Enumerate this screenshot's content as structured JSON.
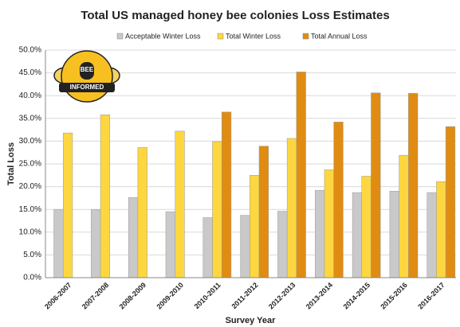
{
  "chart_data": {
    "type": "bar",
    "title": "Total US managed honey bee colonies Loss Estimates",
    "x_label": "Survey Year",
    "y_label": "Total Loss",
    "logo": {
      "top": "BEE",
      "bottom": "INFORMED"
    },
    "categories": [
      "2006-2007",
      "2007-2008",
      "2008-2009",
      "2009-2010",
      "2010-2011",
      "2011-2012",
      "2012-2013",
      "2013-2014",
      "2014-2015",
      "2015-2016",
      "2016-2017"
    ],
    "series": [
      {
        "name": "Acceptable Winter Loss",
        "color": "#c9c9c9",
        "values": [
          15,
          15,
          17.6,
          14.5,
          13.2,
          13.7,
          14.6,
          19.2,
          18.7,
          19,
          18.7
        ]
      },
      {
        "name": "Total Winter Loss",
        "color": "#fdd640",
        "values": [
          31.8,
          35.8,
          28.6,
          32.2,
          29.9,
          22.5,
          30.6,
          23.7,
          22.3,
          26.9,
          21.1
        ]
      },
      {
        "name": "Total Annual Loss",
        "color": "#e08c12",
        "values": [
          null,
          null,
          null,
          null,
          36.4,
          28.9,
          45.2,
          34.2,
          40.6,
          40.5,
          33.2
        ]
      }
    ],
    "ylim": [
      0,
      50
    ],
    "yticks": [
      {
        "value": 0,
        "label": "0.0%"
      },
      {
        "value": 5,
        "label": "5.0%"
      },
      {
        "value": 10,
        "label": "10.0%"
      },
      {
        "value": 15,
        "label": "15.0%"
      },
      {
        "value": 20,
        "label": "20.0%"
      },
      {
        "value": 25,
        "label": "25.0%"
      },
      {
        "value": 30,
        "label": "30.0%"
      },
      {
        "value": 35,
        "label": "35.0%"
      },
      {
        "value": 40,
        "label": "40.0%"
      },
      {
        "value": 45,
        "label": "45.0%"
      },
      {
        "value": 50,
        "label": "50.0%"
      }
    ],
    "grid": true,
    "legend": "top"
  }
}
